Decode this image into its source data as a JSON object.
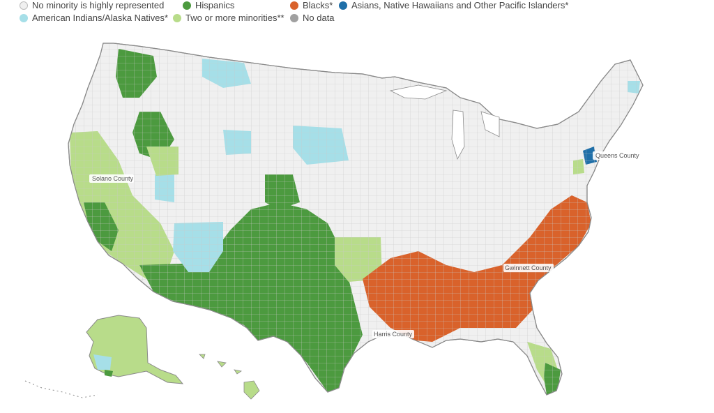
{
  "legend": {
    "items": [
      {
        "key": "none",
        "label": "No minority is highly represented",
        "color": "#f0f0f0"
      },
      {
        "key": "hisp",
        "label": "Hispanics",
        "color": "#4c9a3f"
      },
      {
        "key": "black",
        "label": "Blacks*",
        "color": "#d9622b"
      },
      {
        "key": "asian",
        "label": "Asians, Native  Hawaiians and Other Pacific Islanders*",
        "color": "#1f6fa8"
      },
      {
        "key": "aian",
        "label": "American Indians/Alaska Natives*",
        "color": "#a6dfe8"
      },
      {
        "key": "two",
        "label": "Two or more minorities**",
        "color": "#b8dc8a"
      },
      {
        "key": "nodata",
        "label": "No data",
        "color": "#a0a0a0"
      }
    ]
  },
  "map": {
    "county_labels": {
      "solano": "Solano County",
      "queens": "Queens County",
      "gwinnett": "Gwinnett County",
      "harris": "Harris County"
    }
  }
}
